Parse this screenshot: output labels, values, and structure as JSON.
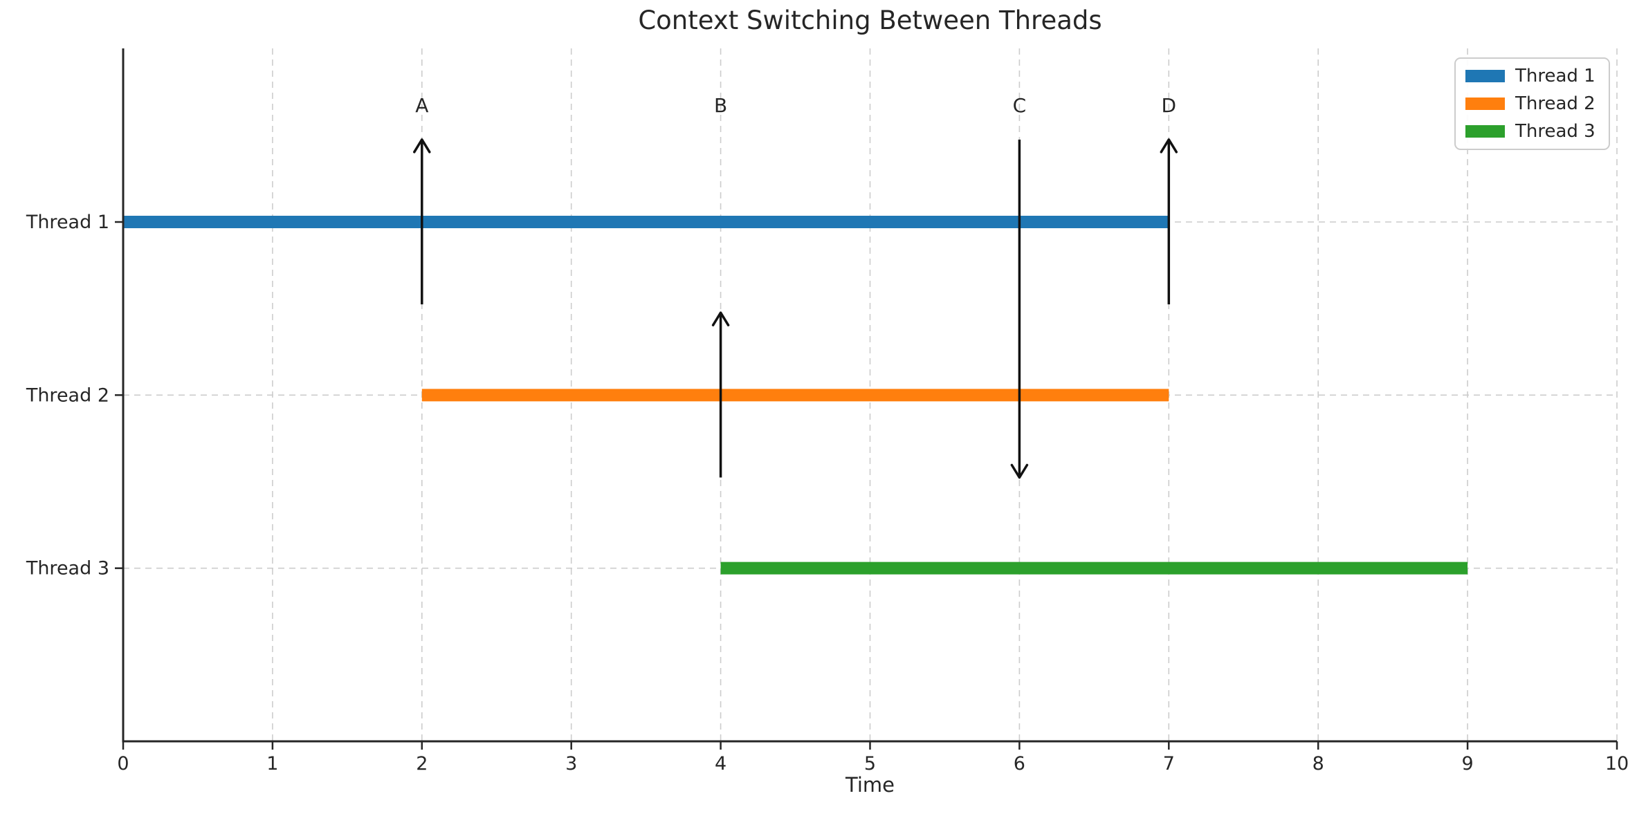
{
  "chart_data": {
    "type": "bar",
    "subtype": "horizontal-gantt-timeline",
    "title": "Context Switching Between Threads",
    "xlabel": "Time",
    "xlim": [
      0,
      10
    ],
    "xticks": [
      0,
      1,
      2,
      3,
      4,
      5,
      6,
      7,
      8,
      9,
      10
    ],
    "grid": {
      "on": true,
      "style": "dashed",
      "color": "#cccccc"
    },
    "axis_color": "#262626",
    "text_color": "#262626",
    "rows": [
      {
        "label": "Thread 1",
        "level": 3,
        "start": 0,
        "end": 7,
        "color": "#1f77b4"
      },
      {
        "label": "Thread 2",
        "level": 2,
        "start": 2,
        "end": 7,
        "color": "#ff7f0e"
      },
      {
        "label": "Thread 3",
        "level": 1,
        "start": 4,
        "end": 9,
        "color": "#2ca02c"
      }
    ],
    "switches": [
      {
        "label": "A",
        "x": 2,
        "from_level": 2.5,
        "to_level": 3.5,
        "direction": "up"
      },
      {
        "label": "B",
        "x": 4,
        "from_level": 1.5,
        "to_level": 2.5,
        "direction": "up"
      },
      {
        "label": "C",
        "x": 6,
        "from_level": 3.5,
        "to_level": 1.5,
        "direction": "down"
      },
      {
        "label": "D",
        "x": 7,
        "from_level": 2.5,
        "to_level": 3.5,
        "direction": "up"
      }
    ],
    "legend": {
      "position": "upper right",
      "entries": [
        {
          "label": "Thread 1",
          "color": "#1f77b4"
        },
        {
          "label": "Thread 2",
          "color": "#ff7f0e"
        },
        {
          "label": "Thread 3",
          "color": "#2ca02c"
        }
      ]
    }
  }
}
